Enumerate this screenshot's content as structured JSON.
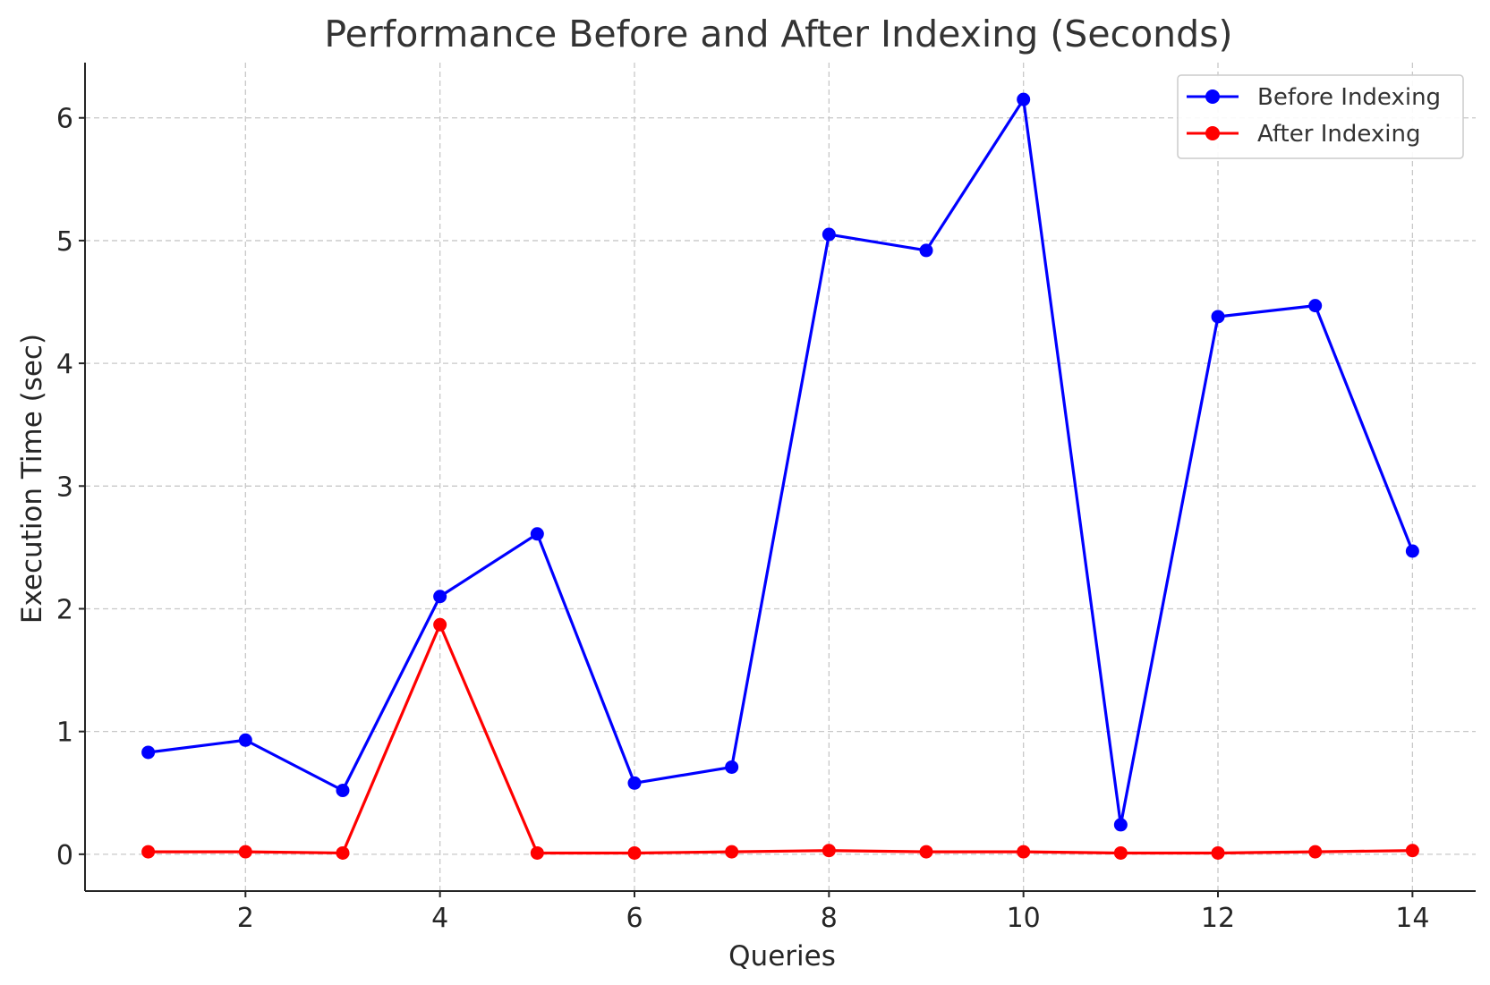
{
  "chart_data": {
    "type": "line",
    "title": "Performance Before and After Indexing (Seconds)",
    "xlabel": "Queries",
    "ylabel": "Execution Time (sec)",
    "x": [
      1,
      2,
      3,
      4,
      5,
      6,
      7,
      8,
      9,
      10,
      11,
      12,
      13,
      14
    ],
    "xlim": [
      0.35,
      14.65
    ],
    "ylim": [
      -0.3,
      6.45
    ],
    "xticks": [
      2,
      4,
      6,
      8,
      10,
      12,
      14
    ],
    "yticks": [
      0,
      1,
      2,
      3,
      4,
      5,
      6
    ],
    "grid": true,
    "legend_position": "top-right",
    "series": [
      {
        "name": "Before Indexing",
        "color": "#0000ff",
        "values": [
          0.83,
          0.93,
          0.52,
          2.1,
          2.61,
          0.58,
          0.71,
          5.05,
          4.92,
          6.15,
          0.24,
          4.38,
          4.47,
          2.47
        ]
      },
      {
        "name": "After Indexing",
        "color": "#ff0000",
        "values": [
          0.02,
          0.02,
          0.01,
          1.87,
          0.01,
          0.01,
          0.02,
          0.03,
          0.02,
          0.02,
          0.01,
          0.01,
          0.02,
          0.03
        ]
      }
    ]
  }
}
